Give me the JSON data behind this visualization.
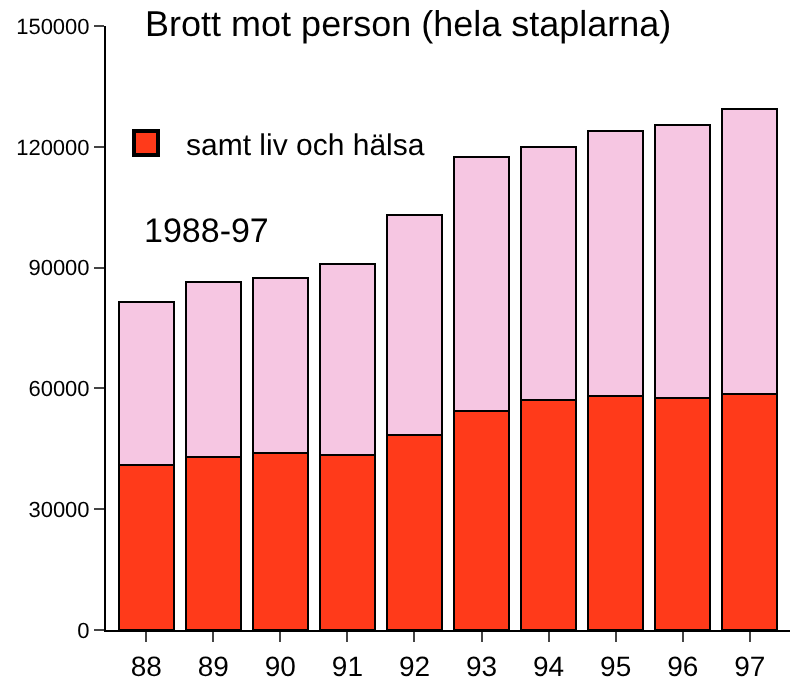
{
  "chart_data": {
    "type": "bar",
    "stacked": true,
    "title": "Brott mot person (hela staplarna)",
    "annotations": [
      "1988-97"
    ],
    "categories": [
      "88",
      "89",
      "90",
      "91",
      "92",
      "93",
      "94",
      "95",
      "96",
      "97"
    ],
    "series": [
      {
        "name": "samt liv och hälsa",
        "color": "#ff3a1a",
        "values": [
          41000,
          43000,
          44000,
          43500,
          48500,
          54500,
          57000,
          58000,
          57500,
          58500
        ]
      },
      {
        "color": "#f6c6e2",
        "values": [
          40500,
          43500,
          43500,
          47500,
          54500,
          63000,
          63000,
          66000,
          68000,
          71000
        ]
      }
    ],
    "ylim": [
      0,
      150000
    ],
    "yticks": [
      0,
      30000,
      60000,
      90000,
      120000,
      150000
    ],
    "legend": "top left"
  }
}
